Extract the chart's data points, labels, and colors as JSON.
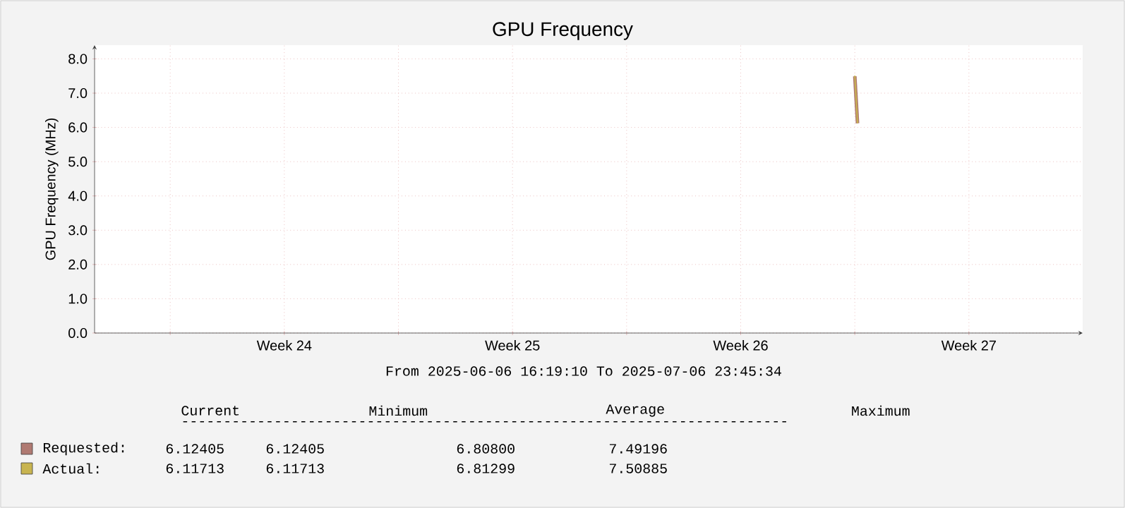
{
  "chart_data": {
    "type": "line",
    "title": "GPU Frequency",
    "subtitle": "From 2025-06-06 16:19:10 To 2025-07-06 23:45:34",
    "ylabel": "GPU Frequency (MHz)",
    "xlim": [
      "2025-06-06T16:19",
      "2025-07-06T23:45"
    ],
    "xticks": [
      {
        "value": "2025-06-09",
        "label": null
      },
      {
        "value": "2025-06-12T12:00",
        "label": "Week 24"
      },
      {
        "value": "2025-06-16",
        "label": null
      },
      {
        "value": "2025-06-19T12:00",
        "label": "Week 25"
      },
      {
        "value": "2025-06-23",
        "label": null
      },
      {
        "value": "2025-06-26T12:00",
        "label": "Week 26"
      },
      {
        "value": "2025-06-30",
        "label": null
      },
      {
        "value": "2025-07-03T12:00",
        "label": "Week 27"
      }
    ],
    "ylim": [
      0,
      8.4
    ],
    "yticks": [
      {
        "value": 0,
        "label": "0.0"
      },
      {
        "value": 1,
        "label": "1.0"
      },
      {
        "value": 2,
        "label": "2.0"
      },
      {
        "value": 3,
        "label": "3.0"
      },
      {
        "value": 4,
        "label": "4.0"
      },
      {
        "value": 5,
        "label": "5.0"
      },
      {
        "value": 6,
        "label": "6.0"
      },
      {
        "value": 7,
        "label": "7.0"
      },
      {
        "value": 8,
        "label": "8.0"
      }
    ],
    "grid": true,
    "legend": "bottom",
    "series": [
      {
        "name": "Requested:",
        "color": "#b07a72",
        "x": [
          "2025-06-30T00:00",
          "2025-06-30T02:00"
        ],
        "values": [
          7.49,
          6.12
        ]
      },
      {
        "name": "Actual:",
        "color": "#c8b450",
        "x": [
          "2025-06-30T00:00",
          "2025-06-30T02:00"
        ],
        "values": [
          7.51,
          6.12
        ]
      }
    ],
    "annotations": [
      "Current",
      "Minimum",
      "Average",
      "Maximum",
      "------------------------------------------------------------------------",
      "6.12405",
      "6.12405",
      "6.80800",
      "7.49196",
      "6.11713",
      "6.11713",
      "6.81299",
      "7.50885"
    ]
  }
}
